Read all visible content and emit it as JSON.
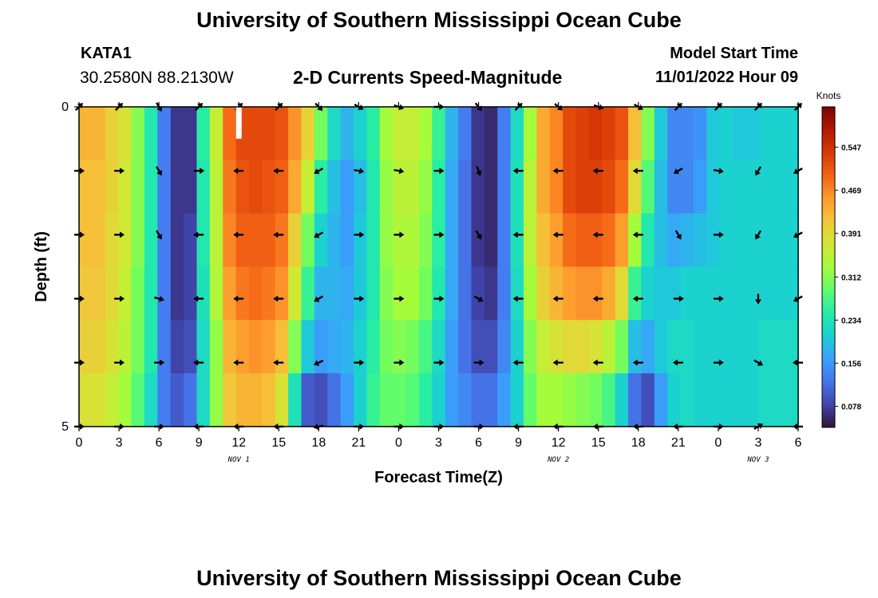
{
  "header": {
    "title": "University of Southern Mississippi Ocean Cube",
    "station": "KATA1",
    "coordinates": "30.2580N  88.2130W",
    "subtitle": "2-D Currents Speed-Magnitude",
    "model_start_label": "Model Start Time",
    "model_start_value": "11/01/2022 Hour 09"
  },
  "footer": {
    "title": "University of Southern Mississippi Ocean Cube"
  },
  "chart_data": {
    "type": "heatmap",
    "title": "2-D Currents Speed-Magnitude",
    "xlabel": "Forecast Time(Z)",
    "ylabel": "Depth (ft)",
    "x_tick_labels": [
      "0",
      "3",
      "6",
      "9",
      "12",
      "15",
      "18",
      "21",
      "0",
      "3",
      "6",
      "9",
      "12",
      "15",
      "18",
      "21",
      "0",
      "3",
      "6"
    ],
    "x_range_hours": [
      0,
      54
    ],
    "date_labels": [
      {
        "label": "NOV 1",
        "hour": 12
      },
      {
        "label": "NOV 2",
        "hour": 36
      },
      {
        "label": "NOV 3",
        "hour": 51
      }
    ],
    "y_tick_labels": [
      "0",
      "5"
    ],
    "y_range": [
      0,
      5
    ],
    "colorbar": {
      "label": "Knots",
      "ticks": [
        "0.547",
        "0.469",
        "0.391",
        "0.312",
        "0.234",
        "0.156",
        "0.078"
      ],
      "range": [
        0.04,
        0.62
      ],
      "gradient_colors": [
        "#30123b",
        "#4145ab",
        "#4675ed",
        "#39a2fc",
        "#1bcfd4",
        "#24eca6",
        "#61fc6c",
        "#a4fc3b",
        "#d1e834",
        "#f3c63a",
        "#fe9b2d",
        "#f36315",
        "#d93806",
        "#b11901",
        "#7a0403"
      ]
    },
    "depth_layers": [
      0,
      1,
      2,
      3,
      4,
      5
    ],
    "layer_speeds": [
      [
        0.43,
        0.43,
        0.4,
        0.38,
        0.31,
        0.24,
        0.13,
        0.07,
        0.07,
        0.25,
        0.36,
        0.49,
        0.52,
        0.52,
        0.52,
        0.51,
        0.46,
        0.4,
        0.3,
        0.22,
        0.18,
        0.21,
        0.25,
        0.33,
        0.36,
        0.36,
        0.33,
        0.26,
        0.18,
        0.13,
        0.07,
        0.06,
        0.13,
        0.22,
        0.33,
        0.44,
        0.47,
        0.52,
        0.53,
        0.54,
        0.53,
        0.51,
        0.42,
        0.31,
        0.2,
        0.14,
        0.14,
        0.15,
        0.2,
        0.21,
        0.2,
        0.2,
        0.21,
        0.21,
        0.21
      ],
      [
        0.42,
        0.42,
        0.4,
        0.37,
        0.31,
        0.24,
        0.13,
        0.07,
        0.07,
        0.24,
        0.35,
        0.48,
        0.51,
        0.52,
        0.51,
        0.5,
        0.44,
        0.36,
        0.25,
        0.19,
        0.16,
        0.19,
        0.24,
        0.32,
        0.35,
        0.35,
        0.32,
        0.25,
        0.17,
        0.12,
        0.07,
        0.06,
        0.13,
        0.23,
        0.35,
        0.44,
        0.47,
        0.52,
        0.53,
        0.53,
        0.52,
        0.49,
        0.39,
        0.28,
        0.19,
        0.14,
        0.14,
        0.16,
        0.2,
        0.21,
        0.21,
        0.21,
        0.21,
        0.21,
        0.21
      ],
      [
        0.42,
        0.42,
        0.39,
        0.37,
        0.31,
        0.24,
        0.13,
        0.07,
        0.08,
        0.24,
        0.35,
        0.47,
        0.5,
        0.5,
        0.5,
        0.48,
        0.4,
        0.3,
        0.21,
        0.18,
        0.16,
        0.2,
        0.24,
        0.32,
        0.34,
        0.34,
        0.31,
        0.25,
        0.17,
        0.12,
        0.07,
        0.06,
        0.13,
        0.23,
        0.35,
        0.42,
        0.45,
        0.49,
        0.5,
        0.5,
        0.49,
        0.45,
        0.33,
        0.24,
        0.19,
        0.17,
        0.18,
        0.19,
        0.2,
        0.21,
        0.21,
        0.21,
        0.21,
        0.21,
        0.21
      ],
      [
        0.41,
        0.41,
        0.39,
        0.36,
        0.3,
        0.24,
        0.13,
        0.07,
        0.08,
        0.23,
        0.34,
        0.45,
        0.48,
        0.49,
        0.48,
        0.46,
        0.37,
        0.26,
        0.18,
        0.18,
        0.17,
        0.2,
        0.24,
        0.31,
        0.33,
        0.33,
        0.3,
        0.24,
        0.17,
        0.12,
        0.08,
        0.07,
        0.13,
        0.22,
        0.33,
        0.4,
        0.43,
        0.45,
        0.46,
        0.46,
        0.44,
        0.39,
        0.26,
        0.21,
        0.2,
        0.2,
        0.21,
        0.21,
        0.21,
        0.21,
        0.21,
        0.21,
        0.21,
        0.21,
        0.21
      ],
      [
        0.4,
        0.4,
        0.38,
        0.35,
        0.3,
        0.24,
        0.13,
        0.08,
        0.09,
        0.22,
        0.32,
        0.43,
        0.45,
        0.46,
        0.45,
        0.42,
        0.31,
        0.2,
        0.16,
        0.17,
        0.18,
        0.21,
        0.25,
        0.3,
        0.31,
        0.3,
        0.27,
        0.22,
        0.16,
        0.12,
        0.09,
        0.09,
        0.14,
        0.21,
        0.31,
        0.36,
        0.38,
        0.39,
        0.39,
        0.38,
        0.35,
        0.3,
        0.19,
        0.17,
        0.2,
        0.22,
        0.22,
        0.21,
        0.21,
        0.21,
        0.21,
        0.21,
        0.22,
        0.22,
        0.22
      ],
      [
        0.38,
        0.38,
        0.36,
        0.33,
        0.28,
        0.22,
        0.13,
        0.1,
        0.12,
        0.22,
        0.32,
        0.41,
        0.43,
        0.43,
        0.42,
        0.38,
        0.23,
        0.1,
        0.09,
        0.12,
        0.16,
        0.21,
        0.26,
        0.29,
        0.29,
        0.28,
        0.25,
        0.21,
        0.16,
        0.14,
        0.12,
        0.12,
        0.16,
        0.21,
        0.29,
        0.33,
        0.33,
        0.32,
        0.31,
        0.3,
        0.27,
        0.21,
        0.12,
        0.09,
        0.16,
        0.21,
        0.22,
        0.21,
        0.21,
        0.21,
        0.21,
        0.21,
        0.22,
        0.22,
        0.22
      ]
    ],
    "arrow_times_hours": [
      0,
      3,
      6,
      9,
      12,
      15,
      18,
      21,
      24,
      27,
      30,
      33,
      36,
      39,
      42,
      45,
      48,
      51,
      54
    ],
    "arrow_depths": [
      0,
      1,
      2,
      3,
      4,
      5
    ],
    "arrow_directions_deg": [
      [
        45,
        45,
        -60,
        45,
        45,
        45,
        -45,
        -30,
        -20,
        0,
        -50,
        45,
        -40,
        -20,
        -30,
        45,
        45,
        45,
        45
      ],
      [
        0,
        0,
        -60,
        0,
        180,
        180,
        -150,
        -10,
        -10,
        0,
        -70,
        180,
        180,
        180,
        180,
        -150,
        -10,
        -120,
        -150
      ],
      [
        0,
        0,
        -60,
        180,
        180,
        180,
        -150,
        0,
        0,
        0,
        -60,
        180,
        180,
        180,
        180,
        -60,
        0,
        -120,
        -150
      ],
      [
        0,
        0,
        -15,
        180,
        180,
        180,
        -150,
        0,
        0,
        0,
        -30,
        180,
        180,
        180,
        180,
        0,
        0,
        -90,
        -150
      ],
      [
        0,
        0,
        0,
        180,
        180,
        180,
        -155,
        0,
        0,
        0,
        0,
        180,
        180,
        180,
        180,
        180,
        0,
        -30,
        180
      ],
      [
        0,
        0,
        0,
        180,
        180,
        180,
        -170,
        0,
        0,
        0,
        0,
        180,
        180,
        180,
        180,
        180,
        0,
        30,
        180
      ]
    ],
    "marker_hour": 12
  }
}
